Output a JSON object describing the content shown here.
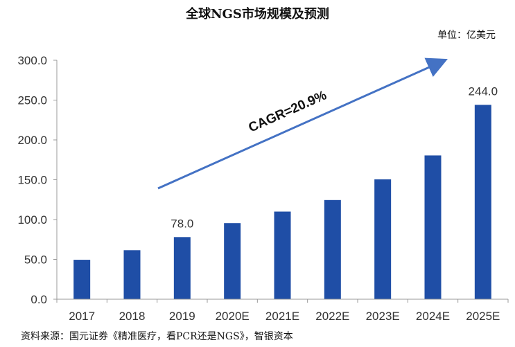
{
  "chart_data": {
    "type": "bar",
    "title": "全球NGS市场规模及预测",
    "unit": "单位：亿美元",
    "source": "资料来源：国元证券《精准医疗，看PCR还是NGS》，智银资本",
    "categories": [
      "2017",
      "2018",
      "2019",
      "2020E",
      "2021E",
      "2022E",
      "2023E",
      "2024E",
      "2025E"
    ],
    "values": [
      49.5,
      61.5,
      78.0,
      95.5,
      110.0,
      124.5,
      150.5,
      180.5,
      244.0
    ],
    "data_labels": [
      {
        "category": "2019",
        "text": "78.0"
      },
      {
        "category": "2025E",
        "text": "244.0"
      }
    ],
    "y_ticks": [
      "0.0",
      "50.0",
      "100.0",
      "150.0",
      "200.0",
      "250.0",
      "300.0"
    ],
    "ylim": [
      0,
      300
    ],
    "annotation": "CAGR=20.9%",
    "bar_color": "#1f4ea6",
    "arrow_color": "#4472c4",
    "grid": false,
    "legend": "none"
  }
}
